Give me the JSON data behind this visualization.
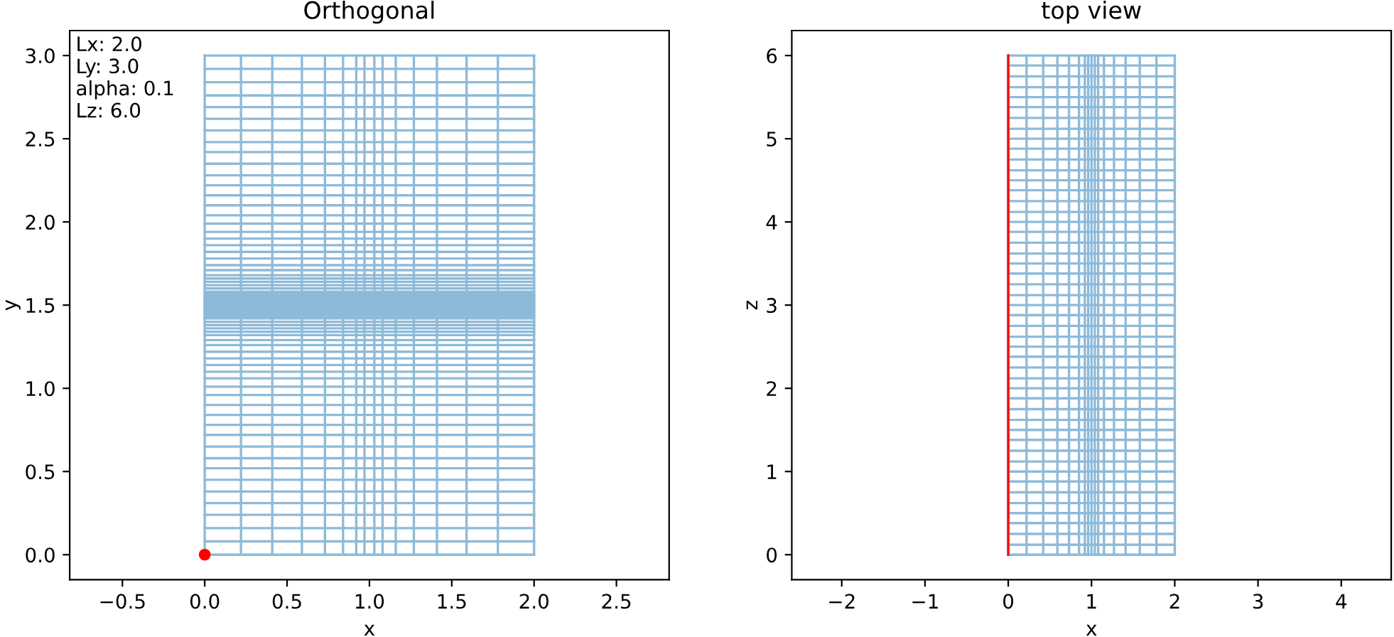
{
  "chart_data": [
    {
      "type": "line",
      "title": "Orthogonal",
      "xlabel": "x",
      "ylabel": "y",
      "xlim": [
        -0.82,
        2.82
      ],
      "ylim": [
        -0.15,
        3.15
      ],
      "xticks": [
        {
          "value": -0.5,
          "label": "−0.5"
        },
        {
          "value": 0,
          "label": "0.0"
        },
        {
          "value": 0.5,
          "label": "0.5"
        },
        {
          "value": 1,
          "label": "1.0"
        },
        {
          "value": 1.5,
          "label": "1.5"
        },
        {
          "value": 2,
          "label": "2.0"
        },
        {
          "value": 2.5,
          "label": "2.5"
        }
      ],
      "yticks": [
        {
          "value": 0,
          "label": "0.0"
        },
        {
          "value": 0.5,
          "label": "0.5"
        },
        {
          "value": 1,
          "label": "1.0"
        },
        {
          "value": 1.5,
          "label": "1.5"
        },
        {
          "value": 2,
          "label": "2.0"
        },
        {
          "value": 2.5,
          "label": "2.5"
        },
        {
          "value": 3,
          "label": "3.0"
        }
      ],
      "annotations": [
        "Lx: 2.0\nLy: 3.0\nalpha: 0.1\nLz: 6.0"
      ],
      "series": [
        {
          "color": "#8ebad9",
          "x": [
            0,
            0
          ],
          "values": [
            0,
            3
          ]
        },
        {
          "color": "#8ebad9",
          "x": [
            0.22,
            0.22
          ],
          "values": [
            0,
            3
          ]
        },
        {
          "color": "#8ebad9",
          "x": [
            0.41,
            0.41
          ],
          "values": [
            0,
            3
          ]
        },
        {
          "color": "#8ebad9",
          "x": [
            0.59,
            0.59
          ],
          "values": [
            0,
            3
          ]
        },
        {
          "color": "#8ebad9",
          "x": [
            0.73,
            0.73
          ],
          "values": [
            0,
            3
          ]
        },
        {
          "color": "#8ebad9",
          "x": [
            0.84,
            0.84
          ],
          "values": [
            0,
            3
          ]
        },
        {
          "color": "#8ebad9",
          "x": [
            0.92,
            0.92
          ],
          "values": [
            0,
            3
          ]
        },
        {
          "color": "#8ebad9",
          "x": [
            0.97,
            0.97
          ],
          "values": [
            0,
            3
          ]
        },
        {
          "color": "#8ebad9",
          "x": [
            1.03,
            1.03
          ],
          "values": [
            0,
            3
          ]
        },
        {
          "color": "#8ebad9",
          "x": [
            1.08,
            1.08
          ],
          "values": [
            0,
            3
          ]
        },
        {
          "color": "#8ebad9",
          "x": [
            1.16,
            1.16
          ],
          "values": [
            0,
            3
          ]
        },
        {
          "color": "#8ebad9",
          "x": [
            1.27,
            1.27
          ],
          "values": [
            0,
            3
          ]
        },
        {
          "color": "#8ebad9",
          "x": [
            1.41,
            1.41
          ],
          "values": [
            0,
            3
          ]
        },
        {
          "color": "#8ebad9",
          "x": [
            1.59,
            1.59
          ],
          "values": [
            0,
            3
          ]
        },
        {
          "color": "#8ebad9",
          "x": [
            1.78,
            1.78
          ],
          "values": [
            0,
            3
          ]
        },
        {
          "color": "#8ebad9",
          "x": [
            2,
            2
          ],
          "values": [
            0,
            3
          ]
        },
        {
          "color": "#8ebad9",
          "x": [
            0,
            2
          ],
          "values": [
            3,
            3
          ]
        },
        {
          "color": "#8ebad9",
          "x": [
            0,
            2
          ],
          "values": [
            2.92,
            2.92
          ]
        },
        {
          "color": "#8ebad9",
          "x": [
            0,
            2
          ],
          "values": [
            2.84,
            2.84
          ]
        },
        {
          "color": "#8ebad9",
          "x": [
            0,
            2
          ],
          "values": [
            2.76,
            2.76
          ]
        },
        {
          "color": "#8ebad9",
          "x": [
            0,
            2
          ],
          "values": [
            2.69,
            2.69
          ]
        },
        {
          "color": "#8ebad9",
          "x": [
            0,
            2
          ],
          "values": [
            2.62,
            2.62
          ]
        },
        {
          "color": "#8ebad9",
          "x": [
            0,
            2
          ],
          "values": [
            2.55,
            2.55
          ]
        },
        {
          "color": "#8ebad9",
          "x": [
            0,
            2
          ],
          "values": [
            2.48,
            2.48
          ]
        },
        {
          "color": "#8ebad9",
          "x": [
            0,
            2
          ],
          "values": [
            2.42,
            2.42
          ]
        },
        {
          "color": "#8ebad9",
          "x": [
            0,
            2
          ],
          "values": [
            2.35,
            2.35
          ]
        },
        {
          "color": "#8ebad9",
          "x": [
            0,
            2
          ],
          "values": [
            2.28,
            2.28
          ]
        },
        {
          "color": "#8ebad9",
          "x": [
            0,
            2
          ],
          "values": [
            2.22,
            2.22
          ]
        },
        {
          "color": "#8ebad9",
          "x": [
            0,
            2
          ],
          "values": [
            2.16,
            2.16
          ]
        },
        {
          "color": "#8ebad9",
          "x": [
            0,
            2
          ],
          "values": [
            2.1,
            2.1
          ]
        },
        {
          "color": "#8ebad9",
          "x": [
            0,
            2
          ],
          "values": [
            2.04,
            2.04
          ]
        },
        {
          "color": "#8ebad9",
          "x": [
            0,
            2
          ],
          "values": [
            1.99,
            1.99
          ]
        },
        {
          "color": "#8ebad9",
          "x": [
            0,
            2
          ],
          "values": [
            1.94,
            1.94
          ]
        },
        {
          "color": "#8ebad9",
          "x": [
            0,
            2
          ],
          "values": [
            1.9,
            1.9
          ]
        },
        {
          "color": "#8ebad9",
          "x": [
            0,
            2
          ],
          "values": [
            1.86,
            1.86
          ]
        },
        {
          "color": "#8ebad9",
          "x": [
            0,
            2
          ],
          "values": [
            1.82,
            1.82
          ]
        },
        {
          "color": "#8ebad9",
          "x": [
            0,
            2
          ],
          "values": [
            1.78,
            1.78
          ]
        },
        {
          "color": "#8ebad9",
          "x": [
            0,
            2
          ],
          "values": [
            1.74,
            1.74
          ]
        },
        {
          "color": "#8ebad9",
          "x": [
            0,
            2
          ],
          "values": [
            1.71,
            1.71
          ]
        },
        {
          "color": "#8ebad9",
          "x": [
            0,
            2
          ],
          "values": [
            1.68,
            1.68
          ]
        },
        {
          "color": "#8ebad9",
          "x": [
            0,
            2
          ],
          "values": [
            1.66,
            1.66
          ]
        },
        {
          "color": "#8ebad9",
          "x": [
            0,
            2
          ],
          "values": [
            1.64,
            1.64
          ]
        },
        {
          "color": "#8ebad9",
          "x": [
            0,
            2
          ],
          "values": [
            1.62,
            1.62
          ]
        },
        {
          "color": "#8ebad9",
          "x": [
            0,
            2
          ],
          "values": [
            1.6,
            1.6
          ]
        },
        {
          "color": "#8ebad9",
          "x": [
            0,
            2
          ],
          "values": [
            1.58,
            1.58
          ]
        },
        {
          "color": "#8ebad9",
          "x": [
            0,
            2
          ],
          "values": [
            1.57,
            1.57
          ]
        },
        {
          "color": "#8ebad9",
          "x": [
            0,
            2
          ],
          "values": [
            1.56,
            1.56
          ]
        },
        {
          "color": "#8ebad9",
          "x": [
            0,
            2
          ],
          "values": [
            1.55,
            1.55
          ]
        },
        {
          "color": "#8ebad9",
          "x": [
            0,
            2
          ],
          "values": [
            1.54,
            1.54
          ]
        },
        {
          "color": "#8ebad9",
          "x": [
            0,
            2
          ],
          "values": [
            1.53,
            1.53
          ]
        },
        {
          "color": "#8ebad9",
          "x": [
            0,
            2
          ],
          "values": [
            1.52,
            1.52
          ]
        },
        {
          "color": "#8ebad9",
          "x": [
            0,
            2
          ],
          "values": [
            1.51,
            1.51
          ]
        },
        {
          "color": "#8ebad9",
          "x": [
            0,
            2
          ],
          "values": [
            1.5,
            1.5
          ]
        },
        {
          "color": "#8ebad9",
          "x": [
            0,
            2
          ],
          "values": [
            1.49,
            1.49
          ]
        },
        {
          "color": "#8ebad9",
          "x": [
            0,
            2
          ],
          "values": [
            1.48,
            1.48
          ]
        },
        {
          "color": "#8ebad9",
          "x": [
            0,
            2
          ],
          "values": [
            1.47,
            1.47
          ]
        },
        {
          "color": "#8ebad9",
          "x": [
            0,
            2
          ],
          "values": [
            1.46,
            1.46
          ]
        },
        {
          "color": "#8ebad9",
          "x": [
            0,
            2
          ],
          "values": [
            1.45,
            1.45
          ]
        },
        {
          "color": "#8ebad9",
          "x": [
            0,
            2
          ],
          "values": [
            1.44,
            1.44
          ]
        },
        {
          "color": "#8ebad9",
          "x": [
            0,
            2
          ],
          "values": [
            1.43,
            1.43
          ]
        },
        {
          "color": "#8ebad9",
          "x": [
            0,
            2
          ],
          "values": [
            1.42,
            1.42
          ]
        },
        {
          "color": "#8ebad9",
          "x": [
            0,
            2
          ],
          "values": [
            1.4,
            1.4
          ]
        },
        {
          "color": "#8ebad9",
          "x": [
            0,
            2
          ],
          "values": [
            1.38,
            1.38
          ]
        },
        {
          "color": "#8ebad9",
          "x": [
            0,
            2
          ],
          "values": [
            1.36,
            1.36
          ]
        },
        {
          "color": "#8ebad9",
          "x": [
            0,
            2
          ],
          "values": [
            1.34,
            1.34
          ]
        },
        {
          "color": "#8ebad9",
          "x": [
            0,
            2
          ],
          "values": [
            1.32,
            1.32
          ]
        },
        {
          "color": "#8ebad9",
          "x": [
            0,
            2
          ],
          "values": [
            1.29,
            1.29
          ]
        },
        {
          "color": "#8ebad9",
          "x": [
            0,
            2
          ],
          "values": [
            1.26,
            1.26
          ]
        },
        {
          "color": "#8ebad9",
          "x": [
            0,
            2
          ],
          "values": [
            1.22,
            1.22
          ]
        },
        {
          "color": "#8ebad9",
          "x": [
            0,
            2
          ],
          "values": [
            1.18,
            1.18
          ]
        },
        {
          "color": "#8ebad9",
          "x": [
            0,
            2
          ],
          "values": [
            1.14,
            1.14
          ]
        },
        {
          "color": "#8ebad9",
          "x": [
            0,
            2
          ],
          "values": [
            1.1,
            1.1
          ]
        },
        {
          "color": "#8ebad9",
          "x": [
            0,
            2
          ],
          "values": [
            1.06,
            1.06
          ]
        },
        {
          "color": "#8ebad9",
          "x": [
            0,
            2
          ],
          "values": [
            1.01,
            1.01
          ]
        },
        {
          "color": "#8ebad9",
          "x": [
            0,
            2
          ],
          "values": [
            0.96,
            0.96
          ]
        },
        {
          "color": "#8ebad9",
          "x": [
            0,
            2
          ],
          "values": [
            0.9,
            0.9
          ]
        },
        {
          "color": "#8ebad9",
          "x": [
            0,
            2
          ],
          "values": [
            0.84,
            0.84
          ]
        },
        {
          "color": "#8ebad9",
          "x": [
            0,
            2
          ],
          "values": [
            0.78,
            0.78
          ]
        },
        {
          "color": "#8ebad9",
          "x": [
            0,
            2
          ],
          "values": [
            0.72,
            0.72
          ]
        },
        {
          "color": "#8ebad9",
          "x": [
            0,
            2
          ],
          "values": [
            0.65,
            0.65
          ]
        },
        {
          "color": "#8ebad9",
          "x": [
            0,
            2
          ],
          "values": [
            0.58,
            0.58
          ]
        },
        {
          "color": "#8ebad9",
          "x": [
            0,
            2
          ],
          "values": [
            0.52,
            0.52
          ]
        },
        {
          "color": "#8ebad9",
          "x": [
            0,
            2
          ],
          "values": [
            0.45,
            0.45
          ]
        },
        {
          "color": "#8ebad9",
          "x": [
            0,
            2
          ],
          "values": [
            0.38,
            0.38
          ]
        },
        {
          "color": "#8ebad9",
          "x": [
            0,
            2
          ],
          "values": [
            0.31,
            0.31
          ]
        },
        {
          "color": "#8ebad9",
          "x": [
            0,
            2
          ],
          "values": [
            0.24,
            0.24
          ]
        },
        {
          "color": "#8ebad9",
          "x": [
            0,
            2
          ],
          "values": [
            0.16,
            0.16
          ]
        },
        {
          "color": "#8ebad9",
          "x": [
            0,
            2
          ],
          "values": [
            0.08,
            0.08
          ]
        },
        {
          "color": "#8ebad9",
          "x": [
            0,
            2
          ],
          "values": [
            0,
            0
          ]
        },
        {
          "type": "scatter",
          "color": "#ff0000",
          "marker": "circle",
          "x": [
            0
          ],
          "values": [
            0
          ]
        }
      ]
    },
    {
      "type": "line",
      "title": "top view",
      "xlabel": "x",
      "ylabel": "z",
      "xlim": [
        -2.6,
        4.6
      ],
      "ylim": [
        -0.3,
        6.3
      ],
      "xticks": [
        {
          "value": -2,
          "label": "−2"
        },
        {
          "value": -1,
          "label": "−1"
        },
        0,
        1,
        2,
        3,
        4
      ],
      "yticks": [
        0,
        1,
        2,
        3,
        4,
        5,
        6
      ],
      "series": [
        {
          "color": "#8ebad9",
          "x": [
            0,
            0
          ],
          "values": [
            0,
            6
          ]
        },
        {
          "color": "#8ebad9",
          "x": [
            0.22,
            0.22
          ],
          "values": [
            0,
            6
          ]
        },
        {
          "color": "#8ebad9",
          "x": [
            0.42,
            0.42
          ],
          "values": [
            0,
            6
          ]
        },
        {
          "color": "#8ebad9",
          "x": [
            0.59,
            0.59
          ],
          "values": [
            0,
            6
          ]
        },
        {
          "color": "#8ebad9",
          "x": [
            0.73,
            0.73
          ],
          "values": [
            0,
            6
          ]
        },
        {
          "color": "#8ebad9",
          "x": [
            0.85,
            0.85
          ],
          "values": [
            0,
            6
          ]
        },
        {
          "color": "#8ebad9",
          "x": [
            0.92,
            0.92
          ],
          "values": [
            0,
            6
          ]
        },
        {
          "color": "#8ebad9",
          "x": [
            0.96,
            0.96
          ],
          "values": [
            0,
            6
          ]
        },
        {
          "color": "#8ebad9",
          "x": [
            1,
            1
          ],
          "values": [
            0,
            6
          ]
        },
        {
          "color": "#8ebad9",
          "x": [
            1.04,
            1.04
          ],
          "values": [
            0,
            6
          ]
        },
        {
          "color": "#8ebad9",
          "x": [
            1.08,
            1.08
          ],
          "values": [
            0,
            6
          ]
        },
        {
          "color": "#8ebad9",
          "x": [
            1.15,
            1.15
          ],
          "values": [
            0,
            6
          ]
        },
        {
          "color": "#8ebad9",
          "x": [
            1.27,
            1.27
          ],
          "values": [
            0,
            6
          ]
        },
        {
          "color": "#8ebad9",
          "x": [
            1.41,
            1.41
          ],
          "values": [
            0,
            6
          ]
        },
        {
          "color": "#8ebad9",
          "x": [
            1.58,
            1.58
          ],
          "values": [
            0,
            6
          ]
        },
        {
          "color": "#8ebad9",
          "x": [
            1.78,
            1.78
          ],
          "values": [
            0,
            6
          ]
        },
        {
          "color": "#8ebad9",
          "x": [
            2,
            2
          ],
          "values": [
            0,
            6
          ]
        },
        {
          "color": "#8ebad9",
          "x": [
            0,
            2
          ],
          "values": [
            0,
            0
          ]
        },
        {
          "color": "#8ebad9",
          "x": [
            0,
            2
          ],
          "values": [
            0.12,
            0.12
          ]
        },
        {
          "color": "#8ebad9",
          "x": [
            0,
            2
          ],
          "values": [
            0.25,
            0.25
          ]
        },
        {
          "color": "#8ebad9",
          "x": [
            0,
            2
          ],
          "values": [
            0.38,
            0.38
          ]
        },
        {
          "color": "#8ebad9",
          "x": [
            0,
            2
          ],
          "values": [
            0.5,
            0.5
          ]
        },
        {
          "color": "#8ebad9",
          "x": [
            0,
            2
          ],
          "values": [
            0.62,
            0.62
          ]
        },
        {
          "color": "#8ebad9",
          "x": [
            0,
            2
          ],
          "values": [
            0.75,
            0.75
          ]
        },
        {
          "color": "#8ebad9",
          "x": [
            0,
            2
          ],
          "values": [
            0.88,
            0.88
          ]
        },
        {
          "color": "#8ebad9",
          "x": [
            0,
            2
          ],
          "values": [
            1,
            1
          ]
        },
        {
          "color": "#8ebad9",
          "x": [
            0,
            2
          ],
          "values": [
            1.12,
            1.12
          ]
        },
        {
          "color": "#8ebad9",
          "x": [
            0,
            2
          ],
          "values": [
            1.25,
            1.25
          ]
        },
        {
          "color": "#8ebad9",
          "x": [
            0,
            2
          ],
          "values": [
            1.38,
            1.38
          ]
        },
        {
          "color": "#8ebad9",
          "x": [
            0,
            2
          ],
          "values": [
            1.5,
            1.5
          ]
        },
        {
          "color": "#8ebad9",
          "x": [
            0,
            2
          ],
          "values": [
            1.62,
            1.62
          ]
        },
        {
          "color": "#8ebad9",
          "x": [
            0,
            2
          ],
          "values": [
            1.75,
            1.75
          ]
        },
        {
          "color": "#8ebad9",
          "x": [
            0,
            2
          ],
          "values": [
            1.88,
            1.88
          ]
        },
        {
          "color": "#8ebad9",
          "x": [
            0,
            2
          ],
          "values": [
            2,
            2
          ]
        },
        {
          "color": "#8ebad9",
          "x": [
            0,
            2
          ],
          "values": [
            2.12,
            2.12
          ]
        },
        {
          "color": "#8ebad9",
          "x": [
            0,
            2
          ],
          "values": [
            2.25,
            2.25
          ]
        },
        {
          "color": "#8ebad9",
          "x": [
            0,
            2
          ],
          "values": [
            2.38,
            2.38
          ]
        },
        {
          "color": "#8ebad9",
          "x": [
            0,
            2
          ],
          "values": [
            2.5,
            2.5
          ]
        },
        {
          "color": "#8ebad9",
          "x": [
            0,
            2
          ],
          "values": [
            2.62,
            2.62
          ]
        },
        {
          "color": "#8ebad9",
          "x": [
            0,
            2
          ],
          "values": [
            2.75,
            2.75
          ]
        },
        {
          "color": "#8ebad9",
          "x": [
            0,
            2
          ],
          "values": [
            2.88,
            2.88
          ]
        },
        {
          "color": "#8ebad9",
          "x": [
            0,
            2
          ],
          "values": [
            3,
            3
          ]
        },
        {
          "color": "#8ebad9",
          "x": [
            0,
            2
          ],
          "values": [
            3.12,
            3.12
          ]
        },
        {
          "color": "#8ebad9",
          "x": [
            0,
            2
          ],
          "values": [
            3.25,
            3.25
          ]
        },
        {
          "color": "#8ebad9",
          "x": [
            0,
            2
          ],
          "values": [
            3.38,
            3.38
          ]
        },
        {
          "color": "#8ebad9",
          "x": [
            0,
            2
          ],
          "values": [
            3.5,
            3.5
          ]
        },
        {
          "color": "#8ebad9",
          "x": [
            0,
            2
          ],
          "values": [
            3.62,
            3.62
          ]
        },
        {
          "color": "#8ebad9",
          "x": [
            0,
            2
          ],
          "values": [
            3.75,
            3.75
          ]
        },
        {
          "color": "#8ebad9",
          "x": [
            0,
            2
          ],
          "values": [
            3.88,
            3.88
          ]
        },
        {
          "color": "#8ebad9",
          "x": [
            0,
            2
          ],
          "values": [
            4,
            4
          ]
        },
        {
          "color": "#8ebad9",
          "x": [
            0,
            2
          ],
          "values": [
            4.12,
            4.12
          ]
        },
        {
          "color": "#8ebad9",
          "x": [
            0,
            2
          ],
          "values": [
            4.25,
            4.25
          ]
        },
        {
          "color": "#8ebad9",
          "x": [
            0,
            2
          ],
          "values": [
            4.38,
            4.38
          ]
        },
        {
          "color": "#8ebad9",
          "x": [
            0,
            2
          ],
          "values": [
            4.5,
            4.5
          ]
        },
        {
          "color": "#8ebad9",
          "x": [
            0,
            2
          ],
          "values": [
            4.62,
            4.62
          ]
        },
        {
          "color": "#8ebad9",
          "x": [
            0,
            2
          ],
          "values": [
            4.75,
            4.75
          ]
        },
        {
          "color": "#8ebad9",
          "x": [
            0,
            2
          ],
          "values": [
            4.88,
            4.88
          ]
        },
        {
          "color": "#8ebad9",
          "x": [
            0,
            2
          ],
          "values": [
            5,
            5
          ]
        },
        {
          "color": "#8ebad9",
          "x": [
            0,
            2
          ],
          "values": [
            5.12,
            5.12
          ]
        },
        {
          "color": "#8ebad9",
          "x": [
            0,
            2
          ],
          "values": [
            5.25,
            5.25
          ]
        },
        {
          "color": "#8ebad9",
          "x": [
            0,
            2
          ],
          "values": [
            5.38,
            5.38
          ]
        },
        {
          "color": "#8ebad9",
          "x": [
            0,
            2
          ],
          "values": [
            5.5,
            5.5
          ]
        },
        {
          "color": "#8ebad9",
          "x": [
            0,
            2
          ],
          "values": [
            5.62,
            5.62
          ]
        },
        {
          "color": "#8ebad9",
          "x": [
            0,
            2
          ],
          "values": [
            5.75,
            5.75
          ]
        },
        {
          "color": "#8ebad9",
          "x": [
            0,
            2
          ],
          "values": [
            5.88,
            5.88
          ]
        },
        {
          "color": "#8ebad9",
          "x": [
            0,
            2
          ],
          "values": [
            6,
            6
          ]
        },
        {
          "color": "#ff0000",
          "x": [
            0,
            0
          ],
          "values": [
            0,
            6
          ]
        }
      ]
    }
  ]
}
